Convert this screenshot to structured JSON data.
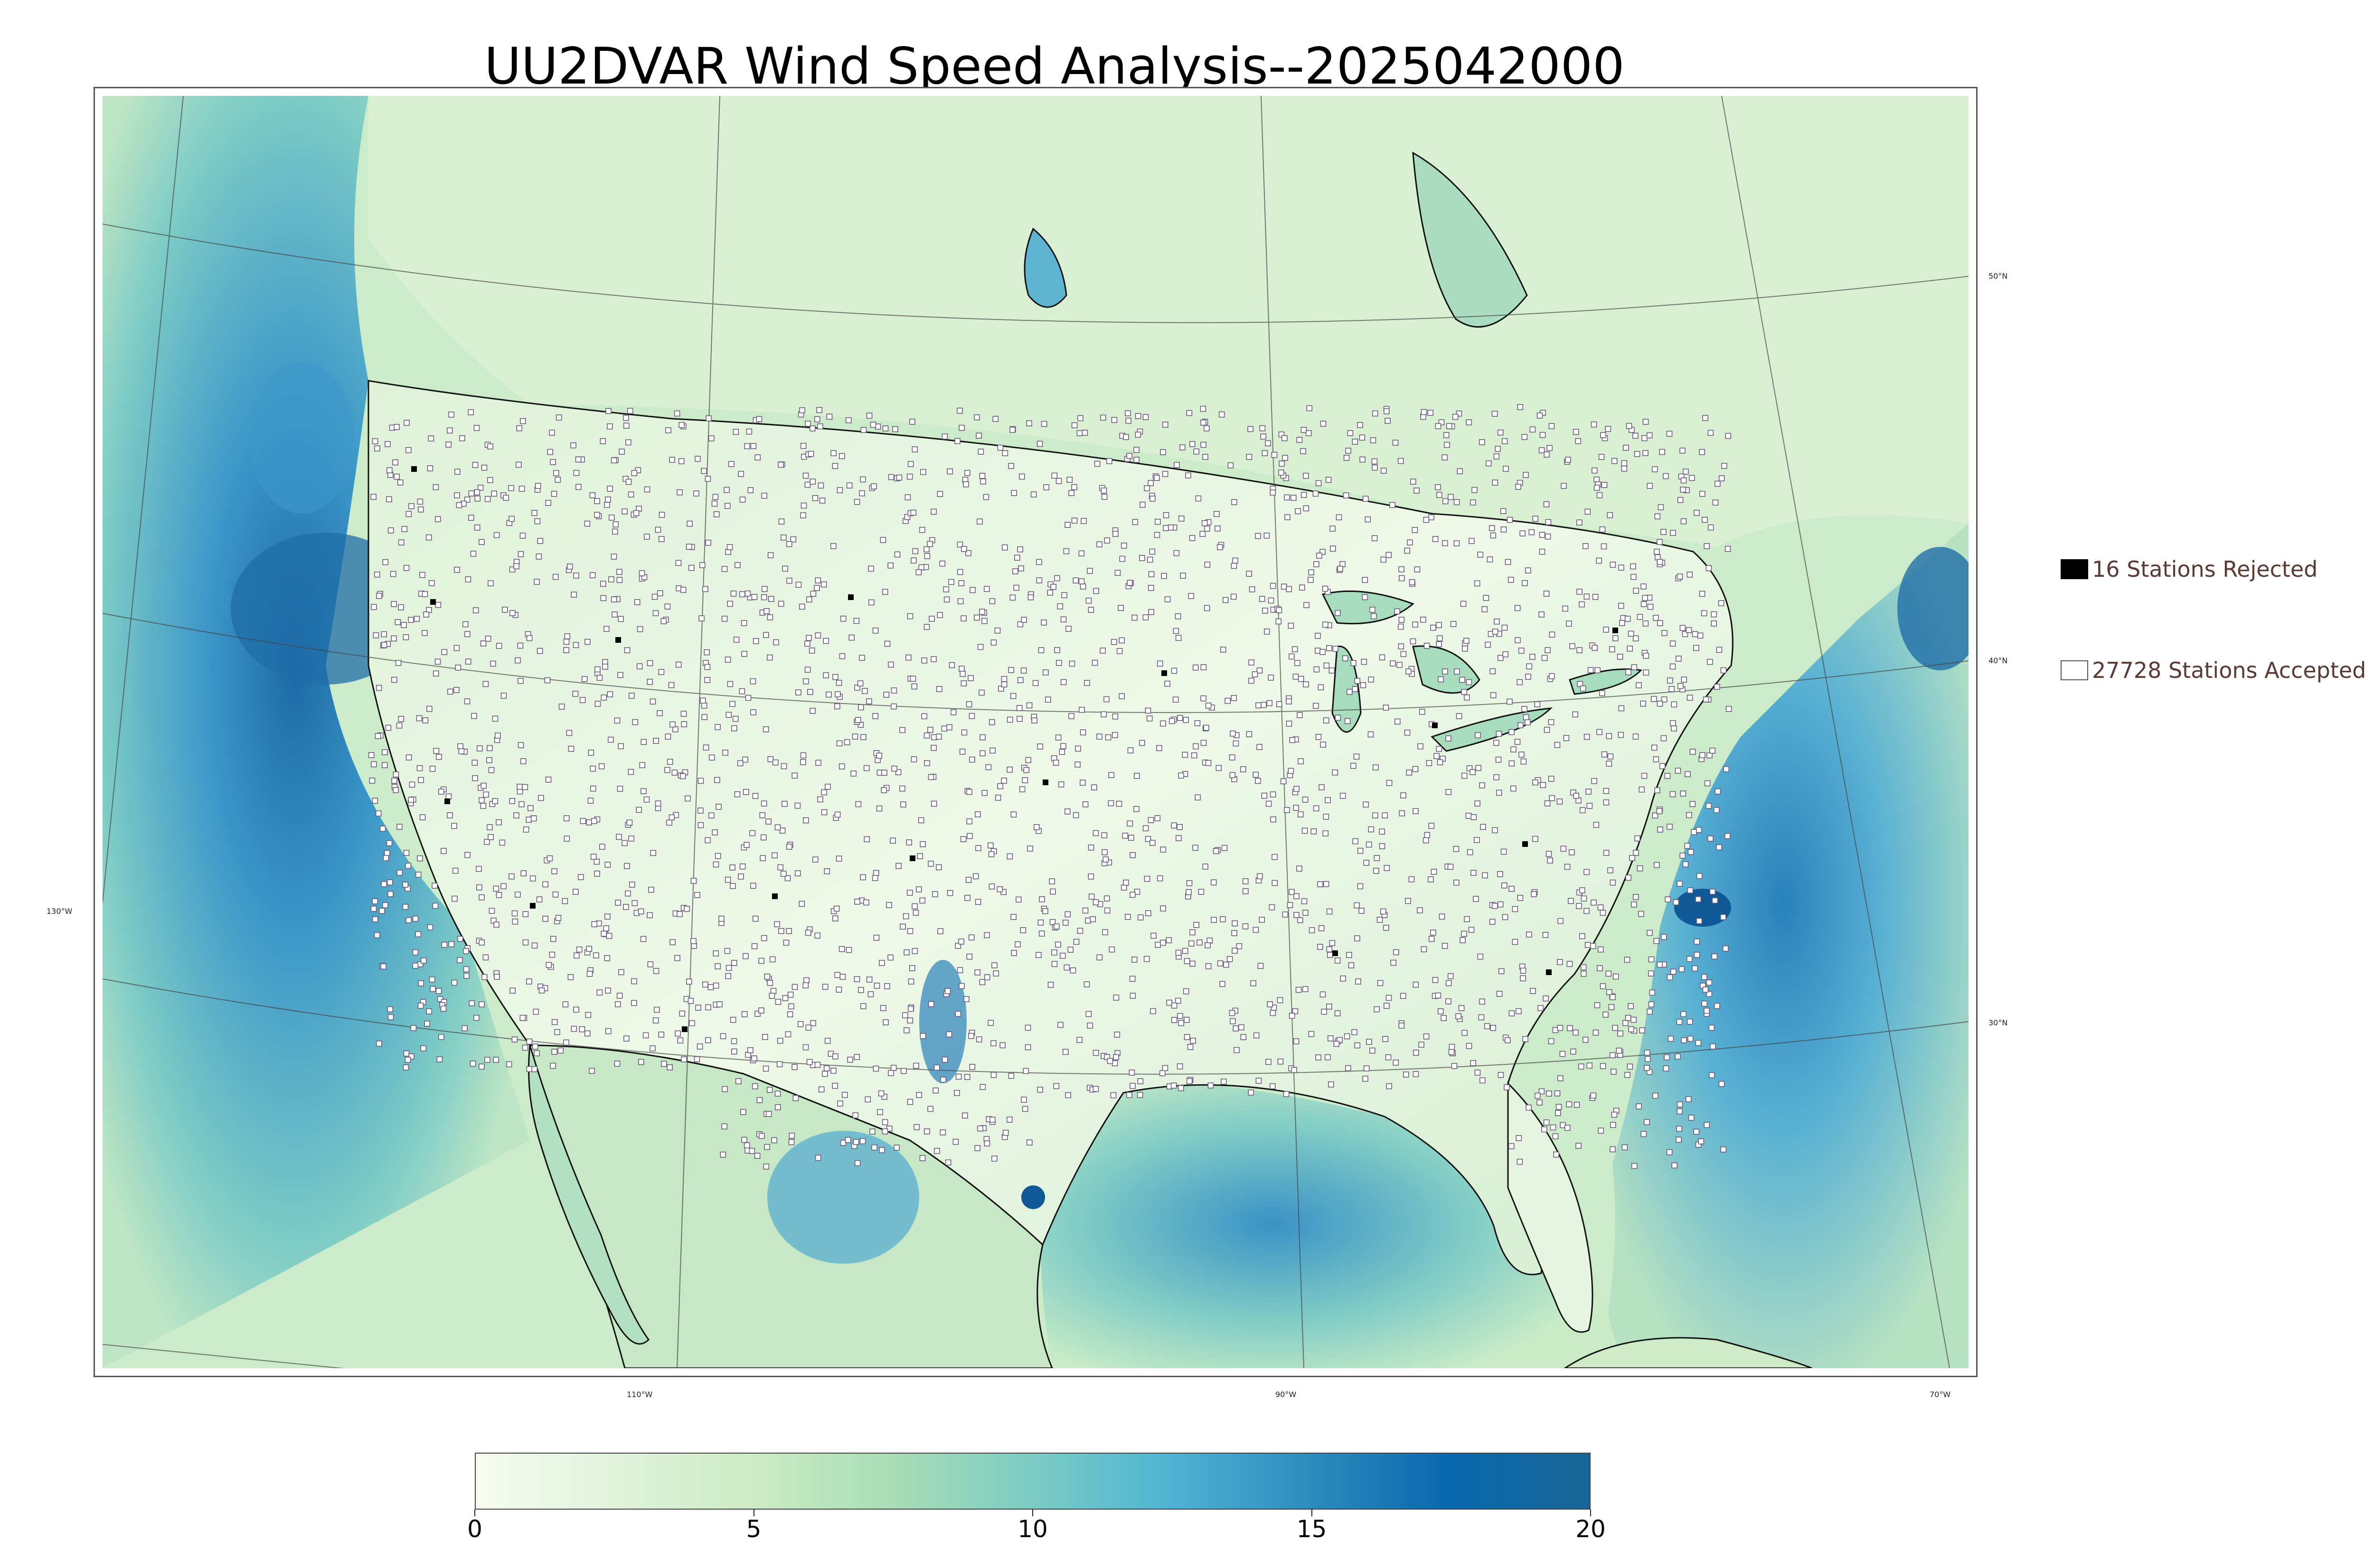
{
  "title": "UU2DVAR Wind Speed Analysis--2025042000",
  "legend": {
    "rejected_label": "16 Stations Rejected",
    "accepted_label": "27728 Stations Accepted",
    "rejected_color": "#000000",
    "accepted_color": "#ffffff"
  },
  "graticule": {
    "lat_labels": [
      "50°N",
      "40°N",
      "30°N"
    ],
    "lon_labels": [
      "130°W",
      "110°W",
      "90°W",
      "70°W"
    ]
  },
  "colorbar": {
    "ticks": [
      "0",
      "5",
      "10",
      "15",
      "20"
    ],
    "min": 0,
    "max": 20,
    "colors": [
      "#f7fcf0",
      "#e0f3db",
      "#ccebc5",
      "#a8ddb5",
      "#7bccc4",
      "#4eb3d3",
      "#2b8cbe",
      "#0868ac",
      "#1a6698"
    ]
  },
  "map_colors": {
    "ocean_high": "#2f86c0",
    "ocean_mid": "#6ab9d6",
    "land_low": "#eaf6e3",
    "land_mid": "#bfe5c0",
    "coast": "#111111",
    "station_edge": "#6b5a7a"
  }
}
